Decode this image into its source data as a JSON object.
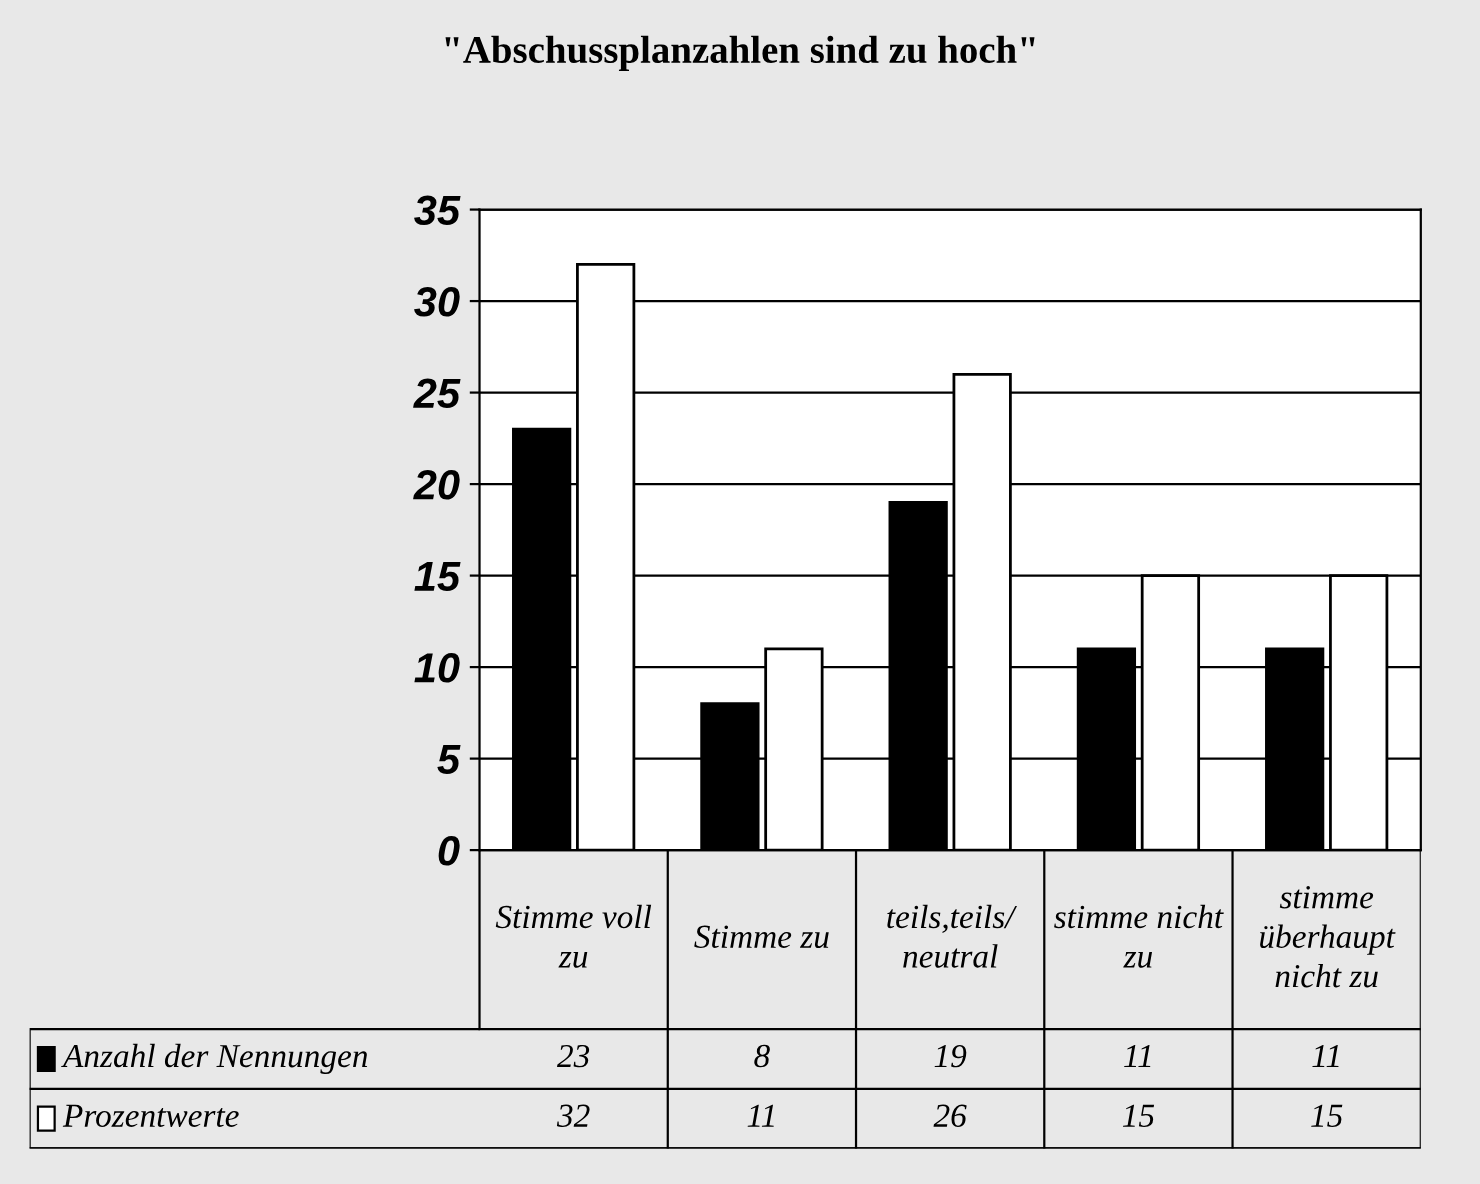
{
  "chart_data": {
    "type": "bar",
    "title": "\"Abschussplanzahlen sind zu hoch\"",
    "categories": [
      "Stimme voll zu",
      "Stimme zu",
      "teils,teils/ neutral",
      "stimme nicht zu",
      "stimme überhaupt nicht zu"
    ],
    "series": [
      {
        "name": "Anzahl der Nennungen",
        "color": "#000000",
        "values": [
          23,
          8,
          19,
          11,
          11
        ]
      },
      {
        "name": "Prozentwerte",
        "color": "#ffffff",
        "values": [
          32,
          11,
          26,
          15,
          15
        ]
      }
    ],
    "ylim": [
      0,
      35
    ],
    "yticks": [
      0,
      5,
      10,
      15,
      20,
      25,
      30,
      35
    ],
    "grid": "y",
    "data_labels": true,
    "legend": "bottom left"
  }
}
